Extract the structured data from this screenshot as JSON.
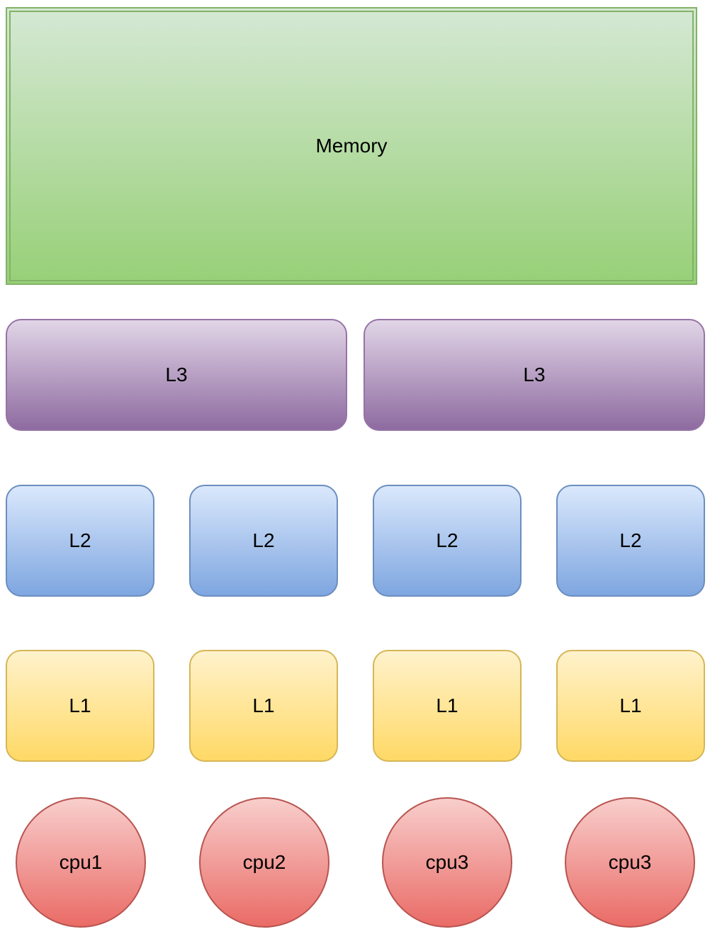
{
  "memory": {
    "label": "Memory"
  },
  "l3": [
    {
      "label": "L3"
    },
    {
      "label": "L3"
    }
  ],
  "l2": [
    {
      "label": "L2"
    },
    {
      "label": "L2"
    },
    {
      "label": "L2"
    },
    {
      "label": "L2"
    }
  ],
  "l1": [
    {
      "label": "L1"
    },
    {
      "label": "L1"
    },
    {
      "label": "L1"
    },
    {
      "label": "L1"
    }
  ],
  "cpus": [
    {
      "label": "cpu1"
    },
    {
      "label": "cpu2"
    },
    {
      "label": "cpu3"
    },
    {
      "label": "cpu3"
    }
  ],
  "colors": {
    "memory_fill_top": "#d5e8d4",
    "memory_fill_bottom": "#97d077",
    "memory_stroke": "#82b366",
    "l3_fill_top": "#e1d5e7",
    "l3_fill_bottom": "#8e6ba0",
    "l3_stroke": "#9673a6",
    "l2_fill_top": "#dae8fc",
    "l2_fill_bottom": "#7ea6e0",
    "l2_stroke": "#6c8ebf",
    "l1_fill_top": "#fff2cc",
    "l1_fill_bottom": "#ffd966",
    "l1_stroke": "#d6b656",
    "cpu_fill_top": "#f8cecc",
    "cpu_fill_bottom": "#ea6b66",
    "cpu_stroke": "#b85450"
  }
}
